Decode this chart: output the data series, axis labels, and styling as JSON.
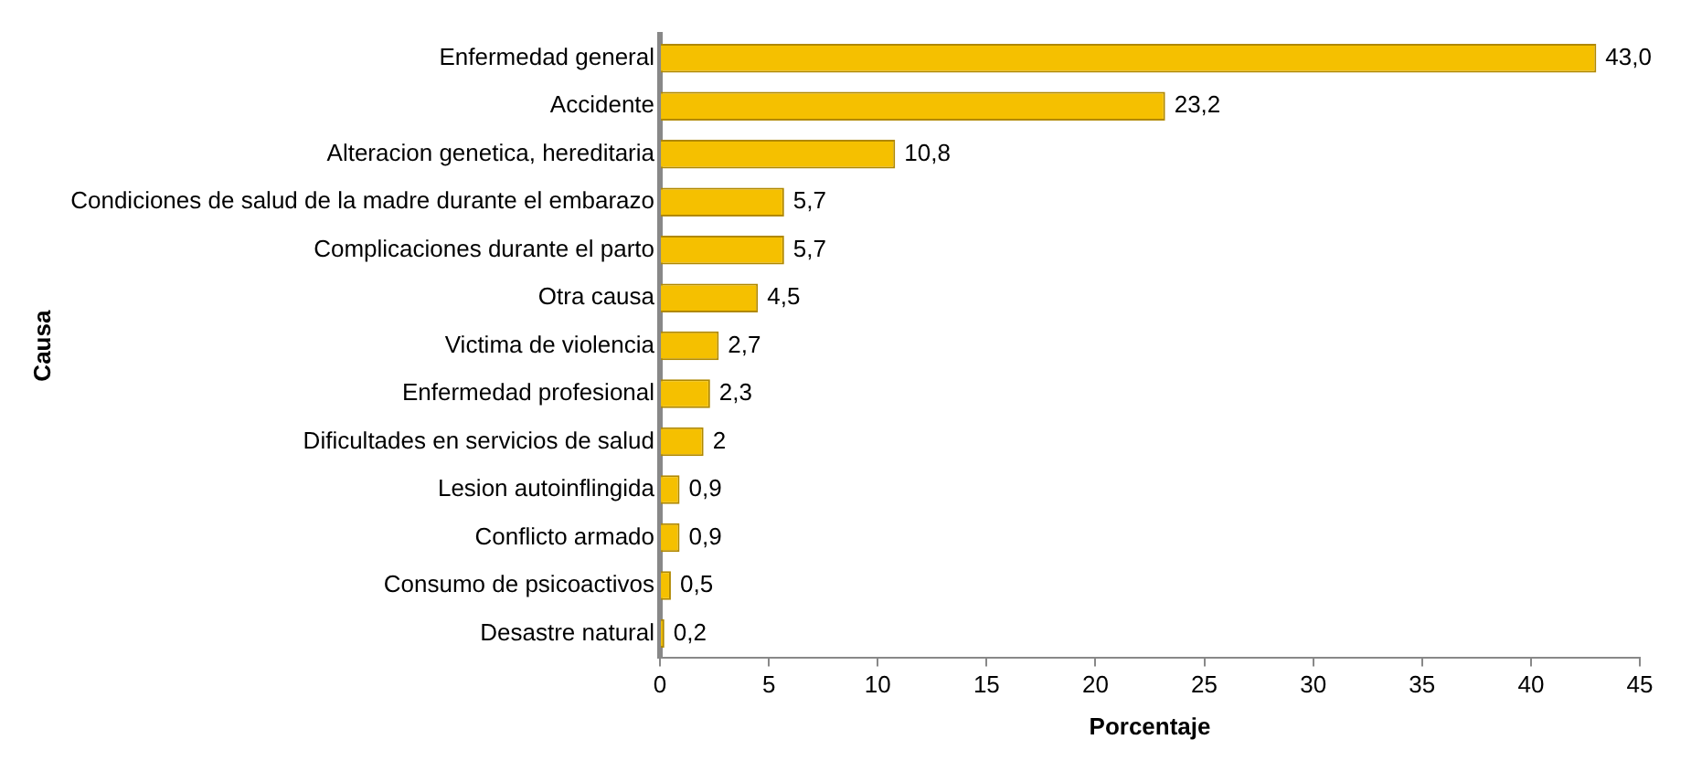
{
  "chart_data": {
    "type": "bar",
    "orientation": "horizontal",
    "xlabel": "Porcentaje",
    "ylabel": "Causa",
    "categories": [
      "Enfermedad general",
      "Accidente",
      "Alteracion genetica, hereditaria",
      "Condiciones de salud de la madre durante el embarazo",
      "Complicaciones durante el parto",
      "Otra causa",
      "Victima de violencia",
      "Enfermedad profesional",
      "Dificultades en servicios de salud",
      "Lesion autoinflingida",
      "Conflicto armado",
      "Consumo de psicoactivos",
      "Desastre natural"
    ],
    "values": [
      43.0,
      23.2,
      10.8,
      5.7,
      5.7,
      4.5,
      2.7,
      2.3,
      2,
      0.9,
      0.9,
      0.5,
      0.2
    ],
    "value_labels": [
      "43,0",
      "23,2",
      "10,8",
      "5,7",
      "5,7",
      "4,5",
      "2,7",
      "2,3",
      "2",
      "0,9",
      "0,9",
      "0,5",
      "0,2"
    ],
    "color": "#f5c000",
    "xlim": [
      0,
      45
    ],
    "xticks": [
      0,
      5,
      10,
      15,
      20,
      25,
      30,
      35,
      40,
      45
    ],
    "grid": false,
    "legend": false
  }
}
